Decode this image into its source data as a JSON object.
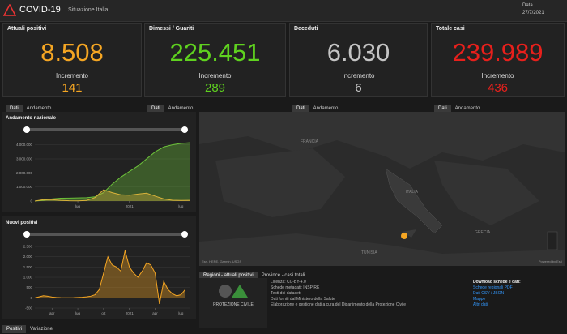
{
  "header": {
    "title": "COVID-19",
    "subtitle": "Situazione Italia",
    "date_label": "Data",
    "date": "27/7/2021"
  },
  "cards": [
    {
      "title": "Attuali positivi",
      "value": "8.508",
      "increment_label": "Incremento",
      "increment": "141",
      "color": "#f5a623",
      "tabs": [
        "Dati",
        "Andamento"
      ]
    },
    {
      "title": "Dimessi / Guariti",
      "value": "225.451",
      "increment_label": "Incremento",
      "increment": "289",
      "color": "#5fd21f",
      "tabs": [
        "Dati",
        "Andamento"
      ]
    },
    {
      "title": "Deceduti",
      "value": "6.030",
      "increment_label": "Incremento",
      "increment": "6",
      "color": "#c4c4c4",
      "tabs": [
        "Dati",
        "Andamento"
      ]
    },
    {
      "title": "Totale casi",
      "value": "239.989",
      "increment_label": "Incremento",
      "increment": "436",
      "color": "#e8201c",
      "tabs": [
        "Dati",
        "Andamento"
      ]
    }
  ],
  "charts": [
    {
      "type": "line",
      "title": "Andamento nazionale",
      "area": true,
      "x": [
        0,
        1,
        2,
        3,
        4,
        5,
        6,
        7,
        8,
        9,
        10,
        11,
        12,
        13,
        14,
        15,
        16,
        17,
        18
      ],
      "series": [
        {
          "color": "#6cc23a",
          "values": [
            0,
            50000,
            150000,
            200000,
            210000,
            220000,
            240000,
            300000,
            600000,
            1200000,
            1700000,
            2100000,
            2500000,
            3000000,
            3500000,
            3850000,
            4000000,
            4100000,
            4150000
          ]
        },
        {
          "color": "#d9b23a",
          "values": [
            0,
            100000,
            100000,
            50000,
            20000,
            15000,
            40000,
            250000,
            800000,
            600000,
            450000,
            420000,
            500000,
            560000,
            350000,
            150000,
            60000,
            40000,
            50000
          ]
        }
      ],
      "xlim": [
        0,
        18
      ],
      "xticks": [
        {
          "value": 5,
          "label": "lug"
        },
        {
          "value": 11,
          "label": "2021"
        },
        {
          "value": 17,
          "label": "lug"
        }
      ],
      "ylim": [
        0,
        4500000
      ],
      "yticks": [
        0,
        {
          "value": 1000000,
          "label": "1.000.000"
        },
        {
          "value": 2000000,
          "label": "2.000.000"
        },
        {
          "value": 3000000,
          "label": "3.000.000"
        },
        {
          "value": 4000000,
          "label": "4.000.000"
        }
      ]
    },
    {
      "type": "line",
      "title": "Nuovi positivi",
      "area": true,
      "x": [
        0,
        0.5,
        1,
        1.5,
        2,
        2.5,
        3,
        3.5,
        4,
        4.5,
        5,
        5.5,
        6,
        6.5,
        7,
        7.5,
        8,
        8.5,
        9,
        9.5,
        10,
        10.5,
        11,
        11.5,
        12,
        12.5,
        13,
        13.5,
        14,
        14.5,
        15,
        15.5,
        16,
        16.5,
        17,
        17.5
      ],
      "series": [
        {
          "color": "#f5a623",
          "values": [
            0,
            50,
            100,
            80,
            40,
            20,
            10,
            5,
            5,
            10,
            20,
            30,
            50,
            80,
            150,
            400,
            1200,
            2000,
            1600,
            1500,
            1300,
            2300,
            1500,
            1200,
            1000,
            1300,
            1700,
            1600,
            1200,
            -300,
            800,
            400,
            200,
            100,
            150,
            400
          ]
        }
      ],
      "xlim": [
        0,
        18
      ],
      "xticks": [
        {
          "value": 2,
          "label": "apr"
        },
        {
          "value": 5,
          "label": "lug"
        },
        {
          "value": 8,
          "label": "ott"
        },
        {
          "value": 11,
          "label": "2021"
        },
        {
          "value": 14,
          "label": "apr"
        },
        {
          "value": 17,
          "label": "lug"
        }
      ],
      "ylim": [
        -500,
        2700
      ],
      "yticks": [
        -500,
        0,
        500,
        {
          "value": 1000,
          "label": "1.000"
        },
        {
          "value": 1500,
          "label": "1.500"
        },
        {
          "value": 2000,
          "label": "2.000"
        },
        {
          "value": 2500,
          "label": "2.500"
        }
      ],
      "tabs": [
        "Positivi",
        "Variazione"
      ]
    }
  ],
  "map": {
    "labels": [
      "FRANCIA",
      "ITALIA",
      "TUNISIA",
      "GRECIA"
    ],
    "attribution": "Esri, HERE, Garmin, USGS",
    "powered": "Powered by Esri",
    "tabs": [
      "Regioni - attuali positivi",
      "Province - casi totali"
    ]
  },
  "info": {
    "logo": "PROTEZIONE CIVILE",
    "lines": [
      "Licenza: CC-BY-4.0",
      "Schede metadati: INSPIRE",
      "Testi dei dataset:",
      "Dati forniti dal Ministero della Salute",
      "Elaborazione e gestione dati a cura del Dipartimento della Protezione Civile"
    ],
    "download_title": "Download schede e dati:",
    "downloads": [
      "Schede regionali PDF",
      "Dati CSV / JSON",
      "Mappe",
      "Altri dati"
    ]
  }
}
